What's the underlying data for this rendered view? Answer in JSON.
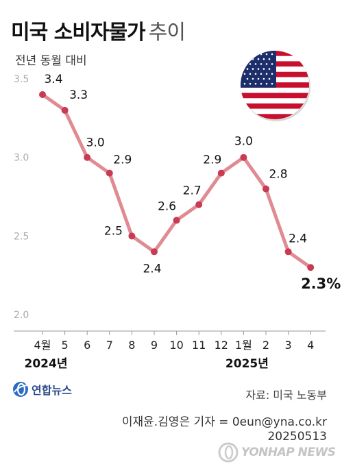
{
  "title": {
    "main": "미국 소비자물가",
    "light": "추이"
  },
  "subtitle": "전년 동월 대비",
  "source": "자료: 미국 노동부",
  "credit": {
    "line1": "이재윤.김영은 기자 = 0eun@yna.co.kr",
    "line2": "20250513"
  },
  "logo": {
    "text": "연합뉴스",
    "icon": "yonhap-logo-icon"
  },
  "watermark": {
    "text": "YONHAP NEWS",
    "icon": "yonhap-watermark-icon"
  },
  "flag": {
    "icon": "us-flag-icon"
  },
  "colors": {
    "line": "#e08a92",
    "marker": "#c93a55",
    "axis_text": "#aaaaaa",
    "label": "#111111"
  },
  "chart_data": {
    "type": "line",
    "categories": [
      "4월",
      "5",
      "6",
      "7",
      "8",
      "9",
      "10",
      "11",
      "12",
      "1월",
      "2",
      "3",
      "4"
    ],
    "year_labels": [
      {
        "label": "2024년",
        "category_index": 0
      },
      {
        "label": "2025년",
        "category_index": 9
      }
    ],
    "series": [
      {
        "values": [
          3.4,
          3.3,
          3.0,
          2.9,
          2.5,
          2.4,
          2.6,
          2.7,
          2.9,
          3.0,
          2.8,
          2.4,
          2.3
        ]
      }
    ],
    "value_labels": [
      "3.4",
      "3.3",
      "3.0",
      "2.9",
      "2.5",
      "2.4",
      "2.6",
      "2.7",
      "2.9",
      "3.0",
      "2.8",
      "2.4",
      "2.3%"
    ],
    "yticks": [
      "3.5",
      "3.0",
      "2.5",
      "2.0"
    ],
    "yticks_values": [
      3.5,
      3.0,
      2.5,
      2.0
    ],
    "ylim": [
      2.0,
      3.5
    ],
    "grid": false,
    "xlabel": "",
    "ylabel": ""
  }
}
